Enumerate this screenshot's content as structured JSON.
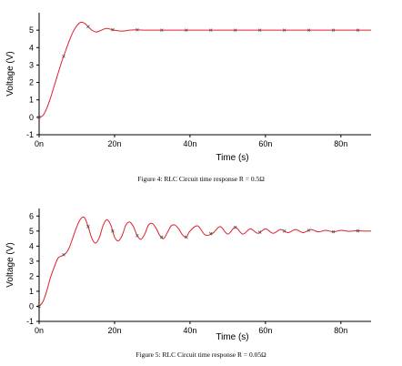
{
  "chart_data": [
    {
      "type": "line",
      "xlabel": "Time (s)",
      "ylabel": "Voltage (V)",
      "xlim": [
        0,
        88
      ],
      "ylim": [
        -1,
        6
      ],
      "x_ticks": [
        {
          "value": 0,
          "label": "0n"
        },
        {
          "value": 20,
          "label": "20n"
        },
        {
          "value": 40,
          "label": "40n"
        },
        {
          "value": 60,
          "label": "60n"
        },
        {
          "value": 80,
          "label": "80n"
        }
      ],
      "y_ticks": [
        {
          "value": -1,
          "label": "-1"
        },
        {
          "value": 0,
          "label": "0"
        },
        {
          "value": 1,
          "label": "1"
        },
        {
          "value": 2,
          "label": "2"
        },
        {
          "value": 3,
          "label": "3"
        },
        {
          "value": 4,
          "label": "4"
        },
        {
          "value": 5,
          "label": "5"
        }
      ],
      "grid": false,
      "series_color": "#e0202a",
      "series": [
        {
          "x": [
            0,
            1,
            2,
            3,
            4,
            5,
            6,
            7,
            8,
            9,
            10,
            11,
            12,
            13,
            14,
            15,
            16,
            17,
            18,
            19,
            20,
            22,
            24,
            26,
            28,
            30,
            35,
            40,
            50,
            60,
            70,
            80,
            88
          ],
          "y": [
            0,
            0.1,
            0.5,
            1.1,
            1.8,
            2.5,
            3.2,
            3.8,
            4.4,
            4.9,
            5.25,
            5.45,
            5.4,
            5.2,
            5.0,
            4.9,
            4.95,
            5.05,
            5.1,
            5.05,
            5.0,
            4.95,
            5.0,
            5.02,
            5.0,
            5.0,
            5.0,
            5.0,
            5.0,
            5.0,
            5.0,
            5.0,
            5.0
          ]
        }
      ],
      "markers_x": [
        0,
        6.5,
        13,
        19.5,
        26,
        32.5,
        39,
        45.5,
        52,
        58.5,
        65,
        71.5,
        78,
        84.5
      ]
    },
    {
      "type": "line",
      "xlabel": "Time (s)",
      "ylabel": "Voltage (V)",
      "xlim": [
        0,
        88
      ],
      "ylim": [
        -1,
        6.5
      ],
      "x_ticks": [
        {
          "value": 0,
          "label": "0n"
        },
        {
          "value": 20,
          "label": "20n"
        },
        {
          "value": 40,
          "label": "40n"
        },
        {
          "value": 60,
          "label": "60n"
        },
        {
          "value": 80,
          "label": "80n"
        }
      ],
      "y_ticks": [
        {
          "value": -1,
          "label": "-1"
        },
        {
          "value": 0,
          "label": "0"
        },
        {
          "value": 1,
          "label": "1"
        },
        {
          "value": 2,
          "label": "2"
        },
        {
          "value": 3,
          "label": "3"
        },
        {
          "value": 4,
          "label": "4"
        },
        {
          "value": 5,
          "label": "5"
        },
        {
          "value": 6,
          "label": "6"
        }
      ],
      "grid": false,
      "series_color": "#e0202a",
      "series": [
        {
          "x": [
            0,
            1,
            2,
            3,
            4,
            5,
            6,
            7,
            8,
            9,
            10,
            11,
            12,
            13,
            14,
            15,
            16,
            17,
            18,
            19,
            20,
            21,
            22,
            23,
            24,
            25,
            26,
            27,
            28,
            29,
            30,
            31,
            32,
            33,
            34,
            35,
            36,
            37,
            38,
            39,
            40,
            42,
            44,
            46,
            48,
            50,
            52,
            54,
            56,
            58,
            60,
            62,
            64,
            66,
            68,
            70,
            72,
            74,
            76,
            78,
            80,
            82,
            84,
            86,
            88
          ],
          "y": [
            0,
            0.3,
            1.0,
            1.9,
            2.6,
            3.2,
            3.35,
            3.5,
            3.9,
            4.6,
            5.3,
            5.8,
            5.9,
            5.3,
            4.5,
            4.2,
            4.6,
            5.4,
            5.75,
            5.4,
            4.6,
            4.35,
            4.7,
            5.4,
            5.6,
            5.3,
            4.7,
            4.45,
            4.8,
            5.4,
            5.5,
            5.2,
            4.7,
            4.5,
            4.9,
            5.35,
            5.4,
            5.15,
            4.75,
            4.6,
            5.0,
            5.35,
            4.75,
            4.85,
            5.3,
            4.8,
            5.25,
            4.8,
            5.15,
            4.85,
            5.15,
            4.85,
            5.1,
            4.9,
            5.1,
            4.9,
            5.1,
            4.95,
            5.05,
            4.95,
            5.05,
            4.98,
            5.02,
            5.0,
            5.0
          ]
        }
      ],
      "markers_x": [
        0,
        6.5,
        13,
        19.5,
        26,
        32.5,
        39,
        45.5,
        52,
        58.5,
        65,
        71.5,
        78,
        84.5
      ]
    }
  ],
  "figures": [
    {
      "caption": "Figure 4: RLC Circuit time response R = 0.5Ω"
    },
    {
      "caption": "Figure 5: RLC Circuit time response R = 0.05Ω"
    }
  ]
}
